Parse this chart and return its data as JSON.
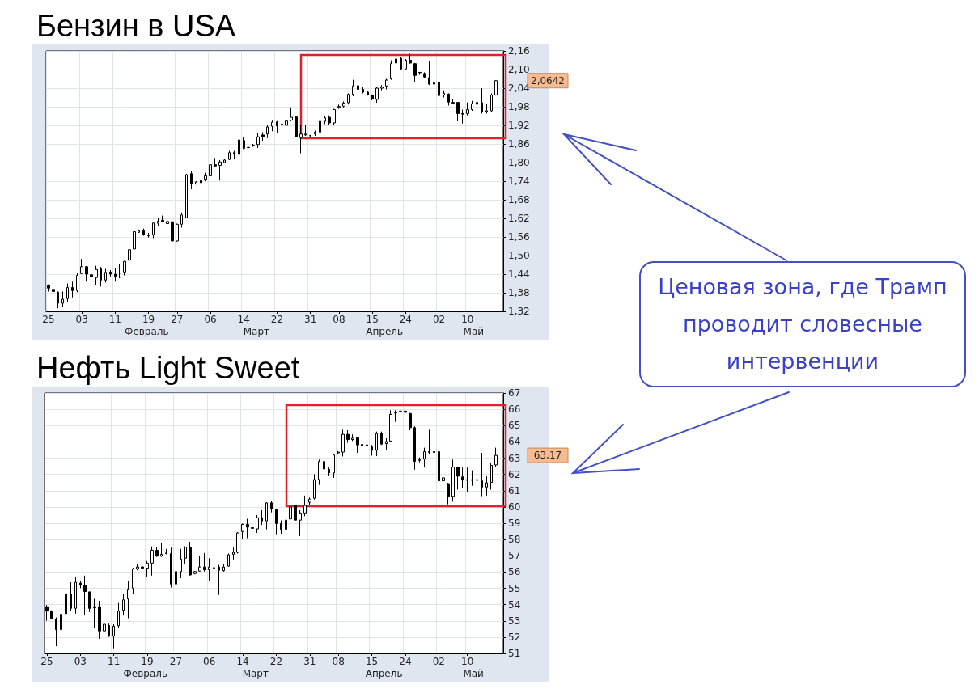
{
  "chart_data": [
    {
      "type": "candlestick",
      "title": "Бензин в USA",
      "categories": [
        "25",
        null,
        null,
        null,
        null,
        null,
        null,
        "03",
        null,
        null,
        null,
        null,
        null,
        null,
        "11",
        null,
        null,
        null,
        null,
        null,
        null,
        "19",
        null,
        null,
        null,
        null,
        null,
        "27",
        null,
        null,
        null,
        null,
        null,
        null,
        "06",
        null,
        null,
        null,
        null,
        null,
        null,
        "14",
        null,
        null,
        null,
        null,
        null,
        null,
        "22",
        null,
        null,
        null,
        null,
        null,
        null,
        "31",
        null,
        null,
        null,
        null,
        null,
        "08",
        null,
        null,
        null,
        null,
        null,
        null,
        "15",
        null,
        null,
        null,
        null,
        null,
        null,
        "24",
        null,
        null,
        null,
        null,
        null,
        null,
        "02",
        null,
        null,
        null,
        null,
        null,
        "10",
        null,
        null,
        null,
        null,
        null,
        null
      ],
      "ohlc": [
        [
          1.403,
          1.407,
          1.384,
          1.395
        ],
        [
          1.391,
          1.393,
          1.382,
          1.384
        ],
        [
          1.382,
          1.384,
          1.33,
          1.346
        ],
        [
          1.346,
          1.384,
          1.333,
          1.359
        ],
        [
          1.361,
          1.41,
          1.35,
          1.397
        ],
        [
          1.397,
          1.416,
          1.365,
          1.387
        ],
        [
          1.387,
          1.444,
          1.382,
          1.436
        ],
        [
          1.442,
          1.489,
          1.44,
          1.464
        ],
        [
          1.464,
          1.466,
          1.416,
          1.44
        ],
        [
          1.438,
          1.453,
          1.419,
          1.431
        ],
        [
          1.429,
          1.467,
          1.406,
          1.455
        ],
        [
          1.457,
          1.463,
          1.4,
          1.421
        ],
        [
          1.421,
          1.457,
          1.413,
          1.446
        ],
        [
          1.447,
          1.453,
          1.431,
          1.44
        ],
        [
          1.44,
          1.459,
          1.416,
          1.433
        ],
        [
          1.43,
          1.474,
          1.427,
          1.443
        ],
        [
          1.447,
          1.483,
          1.436,
          1.481
        ],
        [
          1.485,
          1.53,
          1.47,
          1.519
        ],
        [
          1.521,
          1.581,
          1.513,
          1.577
        ],
        [
          1.575,
          1.584,
          1.573,
          1.58
        ],
        [
          1.58,
          1.587,
          1.564,
          1.567
        ],
        [
          1.566,
          1.573,
          1.558,
          1.564
        ],
        [
          1.567,
          1.607,
          1.556,
          1.605
        ],
        [
          1.604,
          1.622,
          1.594,
          1.611
        ],
        [
          1.614,
          1.629,
          1.607,
          1.61
        ],
        [
          1.603,
          1.616,
          1.601,
          1.61
        ],
        [
          1.609,
          1.611,
          1.545,
          1.547
        ],
        [
          1.547,
          1.603,
          1.545,
          1.601
        ],
        [
          1.601,
          1.639,
          1.59,
          1.631
        ],
        [
          1.622,
          1.763,
          1.62,
          1.761
        ],
        [
          1.764,
          1.772,
          1.714,
          1.731
        ],
        [
          1.731,
          1.74,
          1.729,
          1.737
        ],
        [
          1.735,
          1.766,
          1.733,
          1.742
        ],
        [
          1.746,
          1.767,
          1.74,
          1.757
        ],
        [
          1.757,
          1.8,
          1.755,
          1.793
        ],
        [
          1.793,
          1.815,
          1.787,
          1.789
        ],
        [
          1.791,
          1.808,
          1.742,
          1.802
        ],
        [
          1.8,
          1.813,
          1.798,
          1.808
        ],
        [
          1.81,
          1.838,
          1.808,
          1.832
        ],
        [
          1.832,
          1.838,
          1.813,
          1.827
        ],
        [
          1.826,
          1.875,
          1.824,
          1.873
        ],
        [
          1.871,
          1.881,
          1.843,
          1.846
        ],
        [
          1.849,
          1.86,
          1.823,
          1.848
        ],
        [
          1.854,
          1.86,
          1.851,
          1.856
        ],
        [
          1.858,
          1.896,
          1.847,
          1.883
        ],
        [
          1.889,
          1.898,
          1.87,
          1.884
        ],
        [
          1.892,
          1.92,
          1.879,
          1.915
        ],
        [
          1.917,
          1.935,
          1.901,
          1.93
        ],
        [
          1.931,
          1.934,
          1.894,
          1.918
        ],
        [
          1.924,
          1.927,
          1.911,
          1.922
        ],
        [
          1.92,
          1.941,
          1.903,
          1.934
        ],
        [
          1.937,
          1.978,
          1.933,
          1.946
        ],
        [
          1.947,
          1.948,
          1.881,
          1.883
        ],
        [
          1.881,
          1.92,
          1.83,
          1.892
        ],
        [
          1.889,
          1.92,
          1.886,
          1.892
        ],
        [
          1.887,
          1.889,
          1.884,
          1.886
        ],
        [
          1.892,
          1.903,
          1.886,
          1.898
        ],
        [
          1.898,
          1.937,
          1.894,
          1.933
        ],
        [
          1.933,
          1.95,
          1.924,
          1.944
        ],
        [
          1.946,
          1.952,
          1.922,
          1.928
        ],
        [
          1.928,
          1.973,
          1.92,
          1.971
        ],
        [
          1.978,
          1.987,
          1.973,
          1.981
        ],
        [
          1.982,
          1.997,
          1.978,
          1.992
        ],
        [
          1.993,
          2.023,
          1.987,
          2.02
        ],
        [
          2.02,
          2.067,
          2.014,
          2.047
        ],
        [
          2.048,
          2.053,
          2.014,
          2.036
        ],
        [
          2.036,
          2.044,
          2.023,
          2.027
        ],
        [
          2.027,
          2.03,
          2.016,
          2.018
        ],
        [
          2.018,
          2.02,
          2.001,
          2.006
        ],
        [
          2.004,
          2.044,
          1.993,
          2.04
        ],
        [
          2.04,
          2.05,
          2.033,
          2.044
        ],
        [
          2.047,
          2.07,
          2.036,
          2.066
        ],
        [
          2.07,
          2.13,
          2.067,
          2.119
        ],
        [
          2.121,
          2.143,
          2.108,
          2.134
        ],
        [
          2.136,
          2.141,
          2.1,
          2.102
        ],
        [
          2.102,
          2.134,
          2.1,
          2.13
        ],
        [
          2.13,
          2.151,
          2.119,
          2.121
        ],
        [
          2.119,
          2.121,
          2.061,
          2.081
        ],
        [
          2.091,
          2.091,
          2.083,
          2.09
        ],
        [
          2.087,
          2.091,
          2.074,
          2.076
        ],
        [
          2.074,
          2.127,
          2.05,
          2.053
        ],
        [
          2.053,
          2.074,
          2.048,
          2.057
        ],
        [
          2.059,
          2.06,
          1.997,
          2.016
        ],
        [
          2.018,
          2.033,
          2.01,
          2.023
        ],
        [
          2.021,
          2.023,
          1.984,
          1.995
        ],
        [
          1.994,
          2.006,
          1.988,
          1.992
        ],
        [
          1.994,
          1.995,
          1.933,
          1.958
        ],
        [
          1.958,
          1.971,
          1.926,
          1.956
        ],
        [
          1.958,
          1.994,
          1.952,
          1.971
        ],
        [
          1.971,
          1.999,
          1.967,
          1.99
        ],
        [
          1.988,
          2.001,
          1.984,
          1.994
        ],
        [
          1.993,
          2.04,
          1.958,
          1.964
        ],
        [
          1.964,
          1.988,
          1.958,
          1.967
        ],
        [
          1.967,
          2.023,
          1.963,
          2.018
        ],
        [
          2.018,
          2.066,
          2.016,
          2.0642
        ]
      ],
      "ylim": [
        1.32,
        2.16
      ],
      "yticks": [
        {
          "value": 1.32,
          "label": "1,32"
        },
        {
          "value": 1.38,
          "label": "1,38"
        },
        {
          "value": 1.44,
          "label": "1,44"
        },
        {
          "value": 1.5,
          "label": "1,50"
        },
        {
          "value": 1.56,
          "label": "1,56"
        },
        {
          "value": 1.62,
          "label": "1,62"
        },
        {
          "value": 1.68,
          "label": "1,68"
        },
        {
          "value": 1.74,
          "label": "1,74"
        },
        {
          "value": 1.8,
          "label": "1,80"
        },
        {
          "value": 1.86,
          "label": "1,86"
        },
        {
          "value": 1.92,
          "label": "1,92"
        },
        {
          "value": 1.98,
          "label": "1,98"
        },
        {
          "value": 2.04,
          "label": "2,04"
        },
        {
          "value": 2.1,
          "label": "2,10"
        },
        {
          "value": 2.16,
          "label": "2,16"
        }
      ],
      "grid": true,
      "annotations": [
        "Февраль",
        "Март",
        "Апрель",
        "Май",
        "2,0642",
        "Ценовая зона, где Трамп проводит словесные интервенции"
      ]
    },
    {
      "type": "candlestick",
      "title": "Нефть Light Sweet",
      "categories": [
        "25",
        null,
        null,
        null,
        null,
        null,
        null,
        "03",
        null,
        null,
        null,
        null,
        null,
        null,
        "11",
        null,
        null,
        null,
        null,
        null,
        null,
        "19",
        null,
        null,
        null,
        null,
        null,
        "27",
        null,
        null,
        null,
        null,
        null,
        null,
        "06",
        null,
        null,
        null,
        null,
        null,
        null,
        "14",
        null,
        null,
        null,
        null,
        null,
        null,
        "22",
        null,
        null,
        null,
        null,
        null,
        null,
        "31",
        null,
        null,
        null,
        null,
        null,
        "08",
        null,
        null,
        null,
        null,
        null,
        null,
        "15",
        null,
        null,
        null,
        null,
        null,
        null,
        "24",
        null,
        null,
        null,
        null,
        null,
        null,
        "02",
        null,
        null,
        null,
        null,
        null,
        "10",
        null,
        null,
        null,
        null,
        null,
        null
      ],
      "ohlc": [
        [
          53.87,
          53.98,
          53.0,
          53.6
        ],
        [
          53.6,
          53.65,
          53.08,
          53.16
        ],
        [
          53.11,
          53.21,
          51.44,
          52.46
        ],
        [
          52.46,
          53.93,
          51.97,
          53.41
        ],
        [
          53.44,
          54.96,
          53.16,
          54.64
        ],
        [
          54.64,
          55.37,
          53.6,
          53.77
        ],
        [
          53.77,
          55.67,
          53.44,
          55.37
        ],
        [
          55.32,
          55.45,
          55.01,
          55.21
        ],
        [
          55.18,
          55.78,
          53.33,
          54.8
        ],
        [
          54.78,
          54.78,
          53.54,
          53.77
        ],
        [
          53.87,
          54.36,
          52.59,
          53.8
        ],
        [
          53.87,
          54.23,
          51.9,
          52.38
        ],
        [
          52.38,
          53.03,
          52.18,
          52.79
        ],
        [
          52.72,
          52.83,
          52.01,
          52.06
        ],
        [
          52.06,
          52.79,
          51.31,
          52.67
        ],
        [
          52.7,
          54.1,
          52.59,
          53.6
        ],
        [
          53.65,
          54.64,
          53.33,
          54.29
        ],
        [
          54.34,
          55.45,
          53.16,
          54.96
        ],
        [
          55.01,
          56.27,
          54.64,
          56.19
        ],
        [
          56.19,
          56.49,
          56.11,
          56.31
        ],
        [
          56.32,
          56.52,
          56.11,
          56.24
        ],
        [
          56.24,
          56.68,
          55.7,
          56.55
        ],
        [
          56.55,
          57.58,
          55.78,
          57.34
        ],
        [
          57.34,
          57.53,
          56.93,
          56.98
        ],
        [
          56.98,
          57.8,
          56.93,
          57.09
        ],
        [
          57.14,
          57.42,
          57.09,
          57.17
        ],
        [
          57.14,
          57.5,
          55.05,
          55.26
        ],
        [
          55.26,
          56.06,
          55.21,
          56.03
        ],
        [
          56.03,
          57.42,
          55.62,
          56.8
        ],
        [
          56.85,
          57.58,
          56.52,
          57.53
        ],
        [
          57.53,
          57.86,
          55.78,
          55.82
        ],
        [
          55.91,
          56.06,
          55.86,
          56.03
        ],
        [
          56.06,
          56.98,
          56.03,
          56.31
        ],
        [
          56.31,
          57.17,
          56.03,
          56.14
        ],
        [
          56.14,
          56.85,
          55.45,
          56.31
        ],
        [
          56.24,
          56.98,
          56.19,
          56.27
        ],
        [
          56.31,
          56.44,
          54.59,
          56.11
        ],
        [
          56.08,
          56.49,
          56.03,
          56.31
        ],
        [
          56.36,
          57.14,
          56.32,
          57.06
        ],
        [
          57.09,
          57.53,
          56.77,
          57.21
        ],
        [
          57.21,
          58.45,
          57.14,
          58.4
        ],
        [
          58.49,
          58.98,
          58.03,
          58.93
        ],
        [
          58.93,
          59.27,
          58.08,
          58.76
        ],
        [
          58.68,
          58.89,
          58.49,
          58.73
        ],
        [
          58.65,
          59.5,
          58.4,
          59.34
        ],
        [
          59.34,
          59.8,
          58.89,
          59.14
        ],
        [
          59.14,
          60.29,
          58.62,
          60.25
        ],
        [
          60.25,
          60.37,
          59.66,
          59.88
        ],
        [
          59.84,
          59.88,
          58.32,
          58.98
        ],
        [
          58.98,
          59.17,
          58.35,
          58.62
        ],
        [
          58.62,
          59.39,
          58.24,
          59.19
        ],
        [
          59.26,
          60.32,
          59.22,
          59.99
        ],
        [
          60.12,
          60.17,
          58.85,
          59.19
        ],
        [
          59.19,
          59.8,
          58.21,
          59.63
        ],
        [
          59.63,
          60.7,
          59.43,
          60.09
        ],
        [
          60.29,
          60.58,
          60.12,
          60.48
        ],
        [
          60.53,
          62.01,
          60.45,
          61.68
        ],
        [
          61.68,
          62.91,
          61.35,
          62.79
        ],
        [
          62.79,
          62.91,
          62.01,
          62.33
        ],
        [
          62.3,
          62.42,
          61.92,
          62.09
        ],
        [
          62.09,
          63.27,
          61.79,
          63.19
        ],
        [
          63.32,
          63.43,
          63.24,
          63.37
        ],
        [
          63.37,
          64.74,
          63.1,
          64.46
        ],
        [
          64.46,
          64.71,
          63.94,
          64.14
        ],
        [
          64.14,
          64.46,
          64.05,
          64.22
        ],
        [
          64.25,
          64.3,
          63.32,
          63.81
        ],
        [
          63.84,
          64.63,
          63.73,
          63.77
        ],
        [
          63.81,
          63.89,
          63.69,
          63.77
        ],
        [
          63.69,
          63.81,
          63.15,
          63.48
        ],
        [
          63.48,
          64.63,
          63.12,
          64.51
        ],
        [
          64.51,
          64.63,
          63.81,
          63.86
        ],
        [
          63.89,
          64.22,
          63.51,
          64.02
        ],
        [
          64.05,
          65.94,
          64.0,
          65.69
        ],
        [
          65.77,
          65.94,
          65.23,
          65.82
        ],
        [
          65.84,
          66.54,
          65.53,
          65.89
        ],
        [
          65.89,
          66.35,
          65.56,
          65.81
        ],
        [
          65.74,
          65.77,
          64.71,
          64.87
        ],
        [
          64.87,
          64.95,
          62.29,
          62.79
        ],
        [
          62.86,
          63.04,
          62.74,
          62.91
        ],
        [
          62.94,
          63.64,
          62.42,
          63.4
        ],
        [
          63.35,
          64.74,
          63.24,
          63.4
        ],
        [
          63.4,
          63.89,
          62.74,
          63.35
        ],
        [
          63.4,
          63.43,
          60.94,
          61.6
        ],
        [
          61.6,
          61.88,
          61.14,
          61.79
        ],
        [
          61.43,
          61.47,
          60.16,
          60.65
        ],
        [
          60.65,
          62.91,
          60.32,
          62.45
        ],
        [
          62.45,
          62.48,
          61.07,
          61.89
        ],
        [
          61.84,
          62.42,
          61.14,
          61.65
        ],
        [
          61.68,
          62.42,
          60.91,
          61.63
        ],
        [
          61.63,
          62.25,
          61.3,
          61.68
        ],
        [
          61.68,
          61.76,
          61.38,
          61.63
        ],
        [
          61.6,
          63.32,
          60.66,
          61.22
        ],
        [
          61.22,
          61.92,
          60.7,
          61.48
        ],
        [
          61.51,
          62.71,
          61.06,
          62.55
        ],
        [
          62.58,
          63.64,
          62.45,
          63.17
        ]
      ],
      "ylim": [
        51,
        67
      ],
      "yticks": [
        51,
        52,
        53,
        54,
        55,
        56,
        57,
        58,
        59,
        60,
        61,
        62,
        63,
        64,
        65,
        66,
        67
      ],
      "grid": true,
      "annotations": [
        "Февраль",
        "Март",
        "Апрель",
        "Май",
        "63,17"
      ]
    }
  ]
}
